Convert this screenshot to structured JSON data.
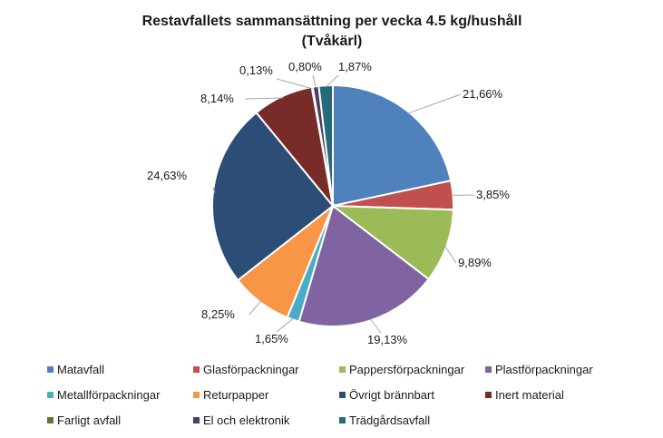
{
  "chart_data": {
    "type": "pie",
    "title": "Restavfallets sammansättning per vecka 4.5 kg/hushåll",
    "subtitle": "(Tvåkärl)",
    "legend_position": "bottom",
    "slices": [
      {
        "name": "Matavfall",
        "value": 21.66,
        "label": "21,66%",
        "color": "#4F81BD"
      },
      {
        "name": "Glasförpackningar",
        "value": 3.85,
        "label": "3,85%",
        "color": "#C0504D"
      },
      {
        "name": "Pappersförpackningar",
        "value": 9.89,
        "label": "9,89%",
        "color": "#9BBB59"
      },
      {
        "name": "Plastförpackningar",
        "value": 19.13,
        "label": "19,13%",
        "color": "#8064A2"
      },
      {
        "name": "Metallförpackningar",
        "value": 1.65,
        "label": "1,65%",
        "color": "#4BACC6"
      },
      {
        "name": "Returpapper",
        "value": 8.25,
        "label": "8,25%",
        "color": "#F79646"
      },
      {
        "name": "Övrigt brännbart",
        "value": 24.63,
        "label": "24,63%",
        "color": "#2C4D75"
      },
      {
        "name": "Inert material",
        "value": 8.14,
        "label": "8,14%",
        "color": "#772C2A"
      },
      {
        "name": "Farligt avfall",
        "value": 0.13,
        "label": "0,13%",
        "color": "#5F7530"
      },
      {
        "name": "El och elektronik",
        "value": 0.8,
        "label": "0,80%",
        "color": "#4D3B62"
      },
      {
        "name": "Trädgårdsavfall",
        "value": 1.87,
        "label": "1,87%",
        "color": "#276A7C"
      }
    ]
  }
}
